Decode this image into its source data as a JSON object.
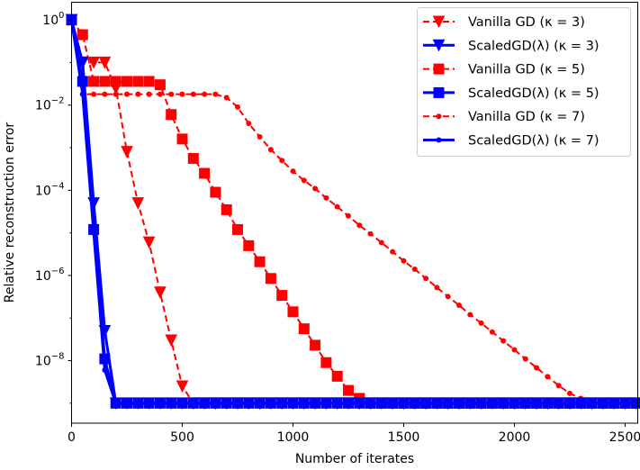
{
  "chart_data": {
    "type": "line",
    "title": "",
    "xlabel": "Number of iterates",
    "ylabel": "Relative reconstruction error",
    "xlim": [
      0,
      2557
    ],
    "ylim": [
      3.4e-10,
      2.6
    ],
    "yscale": "log",
    "grid": false,
    "legend_position": "top-right",
    "xticks": [
      0,
      500,
      1000,
      1500,
      2000,
      2500
    ],
    "xtick_labels": [
      "0",
      "500",
      "1000",
      "1500",
      "2000",
      "2500"
    ],
    "yticks": [
      1,
      0.01,
      0.0001,
      1e-06,
      1e-08
    ],
    "ytick_labels": [
      {
        "base": "10",
        "exp": "0"
      },
      {
        "base": "10",
        "exp": "−2"
      },
      {
        "base": "10",
        "exp": "−4"
      },
      {
        "base": "10",
        "exp": "−6"
      },
      {
        "base": "10",
        "exp": "−8"
      }
    ],
    "x": [
      0,
      50,
      100,
      150,
      200,
      250,
      300,
      350,
      400,
      450,
      500,
      550,
      600,
      650,
      700,
      750,
      800,
      850,
      900,
      950,
      1000,
      1050,
      1100,
      1150,
      1200,
      1250,
      1300,
      1350,
      1400,
      1450,
      1500,
      1550,
      1600,
      1650,
      1700,
      1750,
      1800,
      1850,
      1900,
      1950,
      2000,
      2050,
      2100,
      2150,
      2200,
      2250,
      2300,
      2350,
      2400,
      2450,
      2500,
      2550
    ],
    "series": [
      {
        "name": "Vanilla GD (κ = 3)",
        "color": "#ff0000",
        "style": "dashed",
        "marker": "triangle-down",
        "values": [
          1,
          0.1,
          0.1,
          0.1,
          0.025,
          0.0008,
          5e-05,
          6e-06,
          4e-07,
          3e-08,
          2.5e-09,
          1e-09,
          1e-09,
          1e-09,
          1e-09,
          1e-09,
          1e-09,
          1e-09,
          1e-09,
          1e-09,
          1e-09,
          1e-09,
          1e-09,
          1e-09,
          1e-09,
          1e-09,
          1e-09,
          1e-09,
          1e-09,
          1e-09,
          1e-09,
          1e-09,
          1e-09,
          1e-09,
          1e-09,
          1e-09,
          1e-09,
          1e-09,
          1e-09,
          1e-09,
          1e-09,
          1e-09,
          1e-09,
          1e-09,
          1e-09,
          1e-09,
          1e-09,
          1e-09,
          1e-09,
          1e-09,
          1e-09,
          1e-09
        ]
      },
      {
        "name": "ScaledGD(λ) (κ = 3)",
        "color": "#0000ff",
        "style": "solid",
        "marker": "triangle-down",
        "values": [
          1,
          0.1,
          5e-05,
          5e-08,
          1e-09,
          1e-09,
          1e-09,
          1e-09,
          1e-09,
          1e-09,
          1e-09,
          1e-09,
          1e-09,
          1e-09,
          1e-09,
          1e-09,
          1e-09,
          1e-09,
          1e-09,
          1e-09,
          1e-09,
          1e-09,
          1e-09,
          1e-09,
          1e-09,
          1e-09,
          1e-09,
          1e-09,
          1e-09,
          1e-09,
          1e-09,
          1e-09,
          1e-09,
          1e-09,
          1e-09,
          1e-09,
          1e-09,
          1e-09,
          1e-09,
          1e-09,
          1e-09,
          1e-09,
          1e-09,
          1e-09,
          1e-09,
          1e-09,
          1e-09,
          1e-09,
          1e-09,
          1e-09,
          1e-09,
          1e-09
        ]
      },
      {
        "name": "Vanilla GD (κ = 5)",
        "color": "#ff0000",
        "style": "dashed",
        "marker": "square",
        "values": [
          1,
          0.45,
          0.036,
          0.036,
          0.036,
          0.036,
          0.036,
          0.036,
          0.03,
          0.006,
          0.0016,
          0.00056,
          0.00025,
          9e-05,
          3.5e-05,
          1.2e-05,
          5e-06,
          2.1e-06,
          8.5e-07,
          3.4e-07,
          1.4e-07,
          5.6e-08,
          2.3e-08,
          9e-09,
          4.3e-09,
          2e-09,
          1.3e-09,
          1e-09,
          1e-09,
          1e-09,
          1e-09,
          1e-09,
          1e-09,
          1e-09,
          1e-09,
          1e-09,
          1e-09,
          1e-09,
          1e-09,
          1e-09,
          1e-09,
          1e-09,
          1e-09,
          1e-09,
          1e-09,
          1e-09,
          1e-09,
          1e-09,
          1e-09,
          1e-09,
          1e-09,
          1e-09
        ]
      },
      {
        "name": "ScaledGD(λ) (κ = 5)",
        "color": "#0000ff",
        "style": "solid",
        "marker": "square",
        "values": [
          1,
          0.036,
          1.2e-05,
          1.1e-08,
          1e-09,
          1e-09,
          1e-09,
          1e-09,
          1e-09,
          1e-09,
          1e-09,
          1e-09,
          1e-09,
          1e-09,
          1e-09,
          1e-09,
          1e-09,
          1e-09,
          1e-09,
          1e-09,
          1e-09,
          1e-09,
          1e-09,
          1e-09,
          1e-09,
          1e-09,
          1e-09,
          1e-09,
          1e-09,
          1e-09,
          1e-09,
          1e-09,
          1e-09,
          1e-09,
          1e-09,
          1e-09,
          1e-09,
          1e-09,
          1e-09,
          1e-09,
          1e-09,
          1e-09,
          1e-09,
          1e-09,
          1e-09,
          1e-09,
          1e-09,
          1e-09,
          1e-09,
          1e-09,
          1e-09,
          1e-09
        ]
      },
      {
        "name": "Vanilla GD (κ = 7)",
        "color": "#ff0000",
        "style": "dashed",
        "marker": "circle",
        "values": [
          1,
          0.018,
          0.018,
          0.018,
          0.018,
          0.018,
          0.018,
          0.018,
          0.018,
          0.018,
          0.018,
          0.018,
          0.018,
          0.018,
          0.015,
          0.009,
          0.0037,
          0.0018,
          0.0009,
          0.0005,
          0.00028,
          0.00017,
          0.00011,
          6.6e-05,
          4.1e-05,
          2.5e-05,
          1.5e-05,
          9.5e-06,
          5.9e-06,
          3.6e-06,
          2.2e-06,
          1.4e-06,
          8.5e-07,
          5.2e-07,
          3.2e-07,
          2e-07,
          1.2e-07,
          7.6e-08,
          4.7e-08,
          2.9e-08,
          1.8e-08,
          1.1e-08,
          6.8e-09,
          4.2e-09,
          2.6e-09,
          1.7e-09,
          1.3e-09,
          1.1e-09,
          1e-09,
          1e-09,
          1e-09,
          1e-09
        ]
      },
      {
        "name": "ScaledGD(λ) (κ = 7)",
        "color": "#0000ff",
        "style": "solid",
        "marker": "circle",
        "values": [
          1,
          0.018,
          1e-05,
          6e-09,
          1e-09,
          1e-09,
          1e-09,
          1e-09,
          1e-09,
          1e-09,
          1e-09,
          1e-09,
          1e-09,
          1e-09,
          1e-09,
          1e-09,
          1e-09,
          1e-09,
          1e-09,
          1e-09,
          1e-09,
          1e-09,
          1e-09,
          1e-09,
          1e-09,
          1e-09,
          1e-09,
          1e-09,
          1e-09,
          1e-09,
          1e-09,
          1e-09,
          1e-09,
          1e-09,
          1e-09,
          1e-09,
          1e-09,
          1e-09,
          1e-09,
          1e-09,
          1e-09,
          1e-09,
          1e-09,
          1e-09,
          1e-09,
          1e-09,
          1e-09,
          1e-09,
          1e-09,
          1e-09,
          1e-09,
          1e-09
        ]
      }
    ]
  }
}
